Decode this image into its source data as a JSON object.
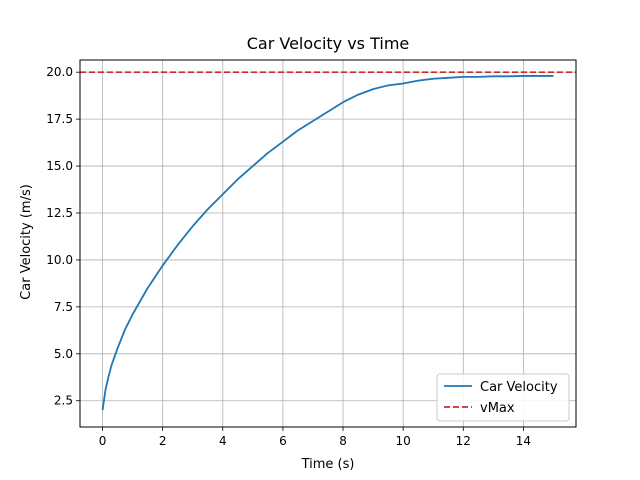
{
  "chart_data": {
    "type": "line",
    "title": "Car Velocity vs Time",
    "xlabel": "Time (s)",
    "ylabel": "Car Velocity (m/s)",
    "xlim": [
      -0.75,
      15.75
    ],
    "ylim": [
      1.1,
      20.65
    ],
    "xticks": [
      0,
      2,
      4,
      6,
      8,
      10,
      12,
      14
    ],
    "xtick_labels": [
      "0",
      "2",
      "4",
      "6",
      "8",
      "10",
      "12",
      "14"
    ],
    "yticks": [
      2.5,
      5.0,
      7.5,
      10.0,
      12.5,
      15.0,
      17.5,
      20.0
    ],
    "ytick_labels": [
      "2.5",
      "5.0",
      "7.5",
      "10.0",
      "12.5",
      "15.0",
      "17.5",
      "20.0"
    ],
    "grid": true,
    "legend_position": "lower-right",
    "series": [
      {
        "name": "Car Velocity",
        "style": "solid",
        "color": "#1f77b4",
        "x": [
          0,
          0.1,
          0.2,
          0.3,
          0.5,
          0.75,
          1,
          1.5,
          2,
          2.5,
          3,
          3.5,
          4,
          4.5,
          5,
          5.5,
          6,
          6.5,
          7,
          7.5,
          8,
          8.5,
          9,
          9.5,
          10,
          10.5,
          11,
          11.5,
          12,
          12.5,
          13,
          13.5,
          14,
          14.5,
          15
        ],
        "y": [
          2.0,
          3.1,
          3.8,
          4.4,
          5.3,
          6.3,
          7.1,
          8.5,
          9.7,
          10.8,
          11.8,
          12.7,
          13.5,
          14.3,
          15.0,
          15.7,
          16.3,
          16.9,
          17.4,
          17.9,
          18.4,
          18.8,
          19.1,
          19.3,
          19.4,
          19.55,
          19.65,
          19.7,
          19.75,
          19.75,
          19.78,
          19.78,
          19.8,
          19.8,
          19.8
        ]
      },
      {
        "name": "vMax",
        "style": "dashed",
        "color": "#d62728",
        "hline": 20.0
      }
    ]
  }
}
